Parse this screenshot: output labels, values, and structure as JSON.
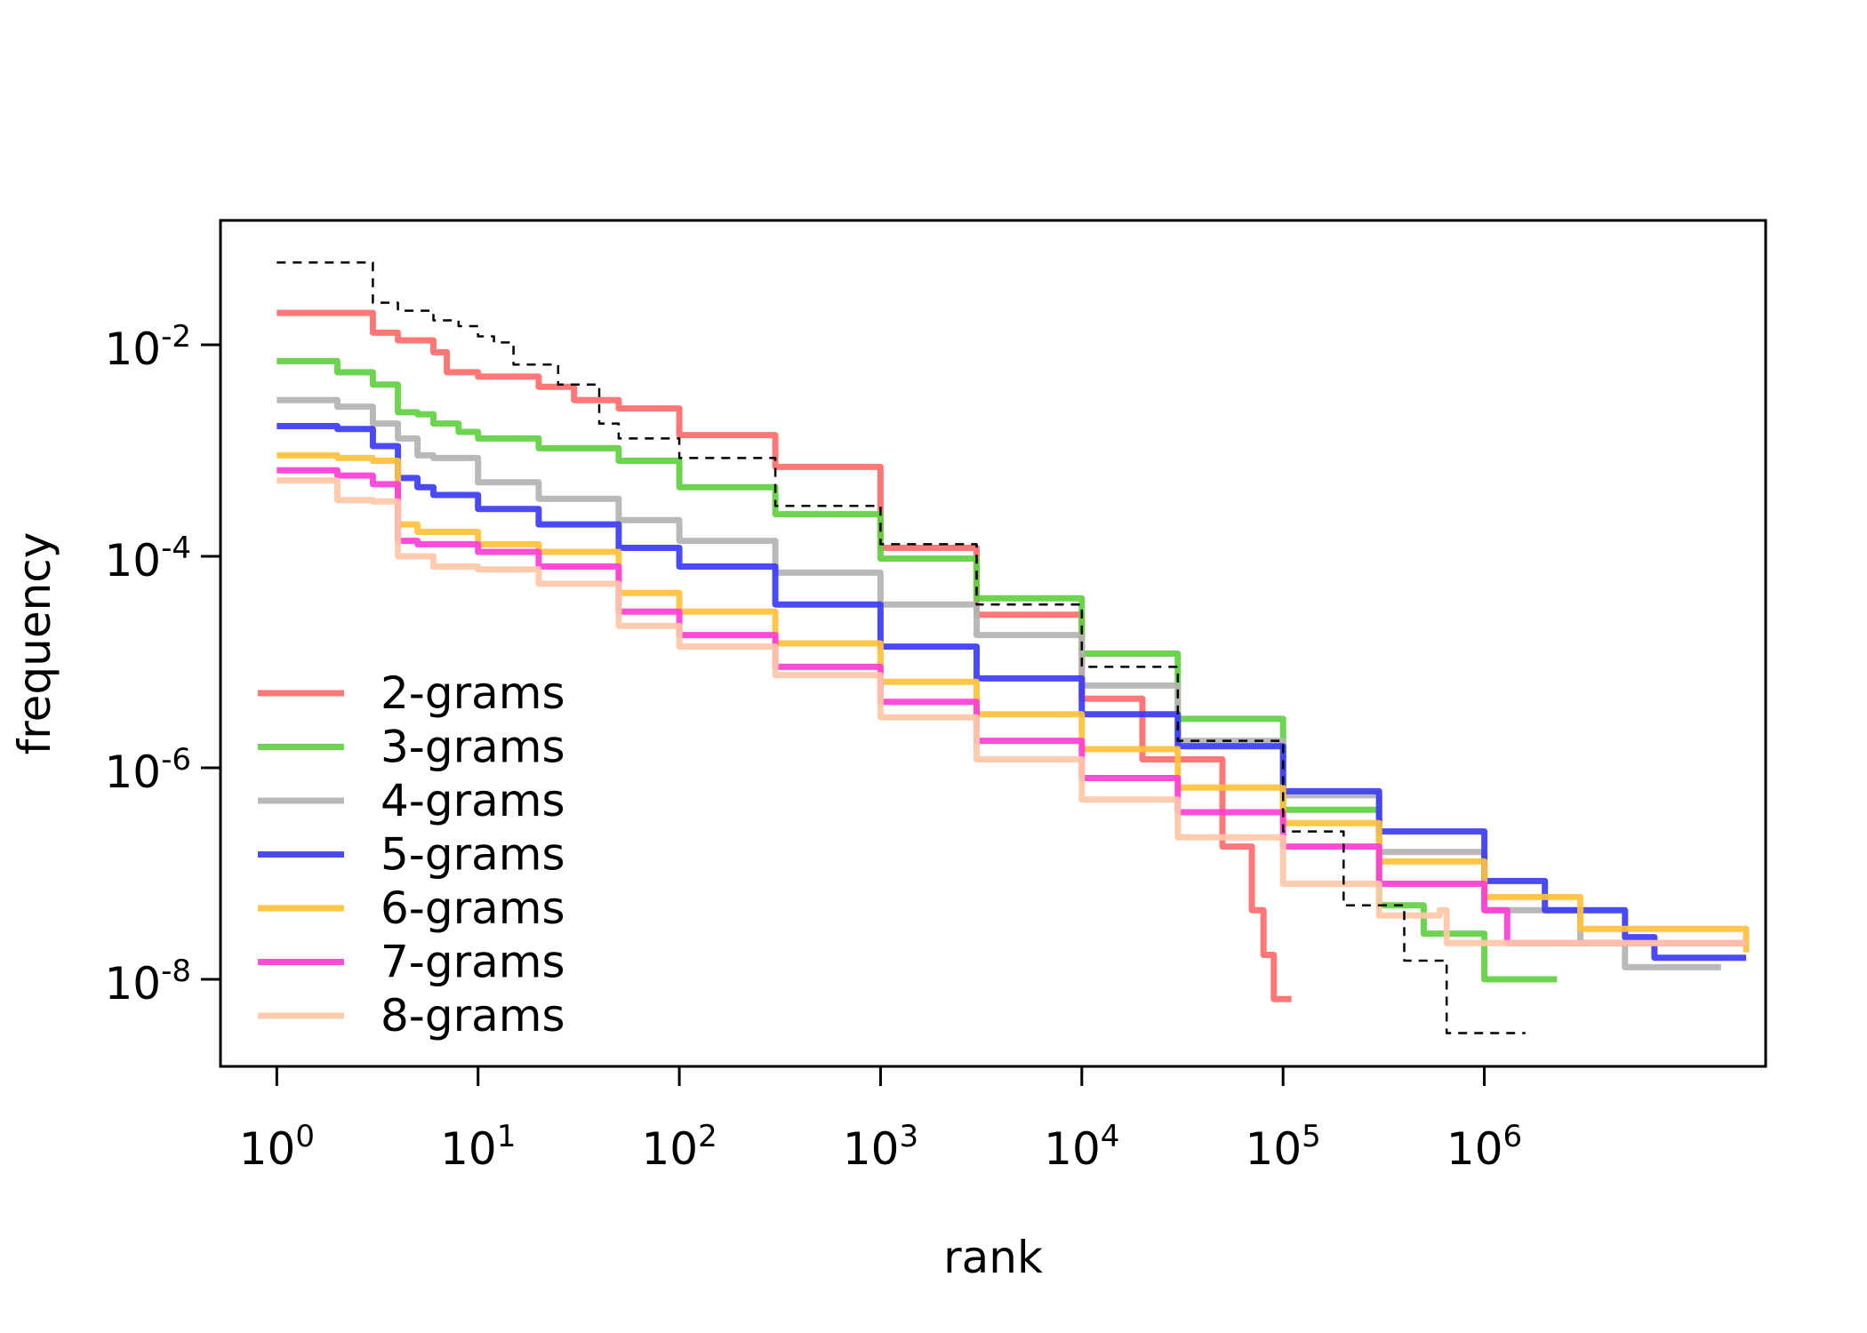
{
  "chart_data": {
    "type": "line",
    "title": "",
    "xlabel": "rank",
    "ylabel": "frequency",
    "x_scale": "log",
    "y_scale": "log",
    "xlim": [
      0.525,
      25000000
    ],
    "ylim": [
      1.5e-09,
      0.15
    ],
    "x_ticks": [
      {
        "base": "10",
        "exp": "0"
      },
      {
        "base": "10",
        "exp": "1"
      },
      {
        "base": "10",
        "exp": "2"
      },
      {
        "base": "10",
        "exp": "3"
      },
      {
        "base": "10",
        "exp": "4"
      },
      {
        "base": "10",
        "exp": "5"
      },
      {
        "base": "10",
        "exp": "6"
      }
    ],
    "y_ticks": [
      {
        "base": "10",
        "exp": "-2"
      },
      {
        "base": "10",
        "exp": "-4"
      },
      {
        "base": "10",
        "exp": "-6"
      },
      {
        "base": "10",
        "exp": "-8"
      }
    ],
    "grid": false,
    "legend_position": "bottom-left",
    "series": [
      {
        "name": "2-grams",
        "color": "#ff6b6b",
        "points": [
          [
            1,
            0.02
          ],
          [
            2,
            0.02
          ],
          [
            3,
            0.013
          ],
          [
            4,
            0.011
          ],
          [
            5,
            0.011
          ],
          [
            6,
            0.0085
          ],
          [
            7,
            0.0055
          ],
          [
            10,
            0.005
          ],
          [
            20,
            0.004
          ],
          [
            30,
            0.003
          ],
          [
            50,
            0.0025
          ],
          [
            100,
            0.0014
          ],
          [
            300,
            0.0007
          ],
          [
            1000,
            0.00012
          ],
          [
            3000,
            2.8e-05
          ],
          [
            10000,
            4.5e-06
          ],
          [
            20000,
            1.2e-06
          ],
          [
            50000,
            1.8e-07
          ],
          [
            70000,
            4.5e-08
          ],
          [
            80000,
            1.7e-08
          ],
          [
            90000,
            6.5e-09
          ],
          [
            110000,
            6.5e-09
          ]
        ]
      },
      {
        "name": "3-grams",
        "color": "#5fd03f",
        "points": [
          [
            1,
            0.007
          ],
          [
            2,
            0.0055
          ],
          [
            3,
            0.0042
          ],
          [
            4,
            0.0023
          ],
          [
            5,
            0.0022
          ],
          [
            6,
            0.0018
          ],
          [
            8,
            0.0015
          ],
          [
            10,
            0.0013
          ],
          [
            20,
            0.00105
          ],
          [
            50,
            0.0008
          ],
          [
            100,
            0.00045
          ],
          [
            300,
            0.00025
          ],
          [
            1000,
            9.5e-05
          ],
          [
            3000,
            4e-05
          ],
          [
            10000,
            1.2e-05
          ],
          [
            30000,
            2.9e-06
          ],
          [
            100000,
            4e-07
          ],
          [
            300000,
            5e-08
          ],
          [
            500000,
            2.7e-08
          ],
          [
            1000000,
            1e-08
          ],
          [
            1300000,
            1e-08
          ],
          [
            2300000,
            1e-08
          ]
        ]
      },
      {
        "name": "4-grams",
        "color": "#b3b3b3",
        "points": [
          [
            1,
            0.003
          ],
          [
            2,
            0.0026
          ],
          [
            3,
            0.0018
          ],
          [
            4,
            0.0013
          ],
          [
            5,
            0.0009
          ],
          [
            6,
            0.00085
          ],
          [
            10,
            0.0005
          ],
          [
            20,
            0.00035
          ],
          [
            50,
            0.00022
          ],
          [
            100,
            0.00014
          ],
          [
            300,
            7e-05
          ],
          [
            1000,
            3.5e-05
          ],
          [
            3000,
            1.8e-05
          ],
          [
            10000,
            6e-06
          ],
          [
            30000,
            1.8e-06
          ],
          [
            100000,
            5.5e-07
          ],
          [
            300000,
            1.6e-07
          ],
          [
            1000000,
            4.5e-08
          ],
          [
            3000000,
            2.2e-08
          ],
          [
            5000000,
            1.3e-08
          ],
          [
            15000000,
            1.3e-08
          ]
        ]
      },
      {
        "name": "5-grams",
        "color": "#3b3bf5",
        "points": [
          [
            1,
            0.0017
          ],
          [
            2,
            0.0016
          ],
          [
            3,
            0.0011
          ],
          [
            4,
            0.00055
          ],
          [
            5,
            0.00045
          ],
          [
            6,
            0.00038
          ],
          [
            10,
            0.00028
          ],
          [
            20,
            0.0002
          ],
          [
            50,
            0.00012
          ],
          [
            100,
            8e-05
          ],
          [
            300,
            3.5e-05
          ],
          [
            1000,
            1.4e-05
          ],
          [
            3000,
            7e-06
          ],
          [
            10000,
            3.2e-06
          ],
          [
            30000,
            1.6e-06
          ],
          [
            100000,
            6e-07
          ],
          [
            300000,
            2.5e-07
          ],
          [
            1000000,
            8.5e-08
          ],
          [
            2000000,
            4.5e-08
          ],
          [
            5000000,
            2.5e-08
          ],
          [
            7000000,
            1.6e-08
          ],
          [
            20000000,
            1.6e-08
          ]
        ]
      },
      {
        "name": "6-grams",
        "color": "#ffc13b",
        "points": [
          [
            1,
            0.0009
          ],
          [
            2,
            0.00085
          ],
          [
            3,
            0.0008
          ],
          [
            4,
            0.0002
          ],
          [
            5,
            0.00017
          ],
          [
            10,
            0.00013
          ],
          [
            20,
            0.00011
          ],
          [
            50,
            4.5e-05
          ],
          [
            100,
            3e-05
          ],
          [
            300,
            1.5e-05
          ],
          [
            1000,
            6.5e-06
          ],
          [
            3000,
            3.2e-06
          ],
          [
            10000,
            1.5e-06
          ],
          [
            30000,
            6.5e-07
          ],
          [
            100000,
            3e-07
          ],
          [
            300000,
            1.3e-07
          ],
          [
            1000000,
            6e-08
          ],
          [
            3000000,
            3e-08
          ],
          [
            20000000,
            1.8e-08
          ]
        ]
      },
      {
        "name": "7-grams",
        "color": "#ff3dd6",
        "points": [
          [
            1,
            0.00065
          ],
          [
            2,
            0.00058
          ],
          [
            3,
            0.00048
          ],
          [
            4,
            0.00014
          ],
          [
            5,
            0.00013
          ],
          [
            10,
            0.00011
          ],
          [
            20,
            8e-05
          ],
          [
            50,
            3e-05
          ],
          [
            100,
            1.8e-05
          ],
          [
            300,
            9e-06
          ],
          [
            1000,
            4.2e-06
          ],
          [
            3000,
            1.8e-06
          ],
          [
            10000,
            8e-07
          ],
          [
            30000,
            3.8e-07
          ],
          [
            100000,
            1.8e-07
          ],
          [
            300000,
            8e-08
          ],
          [
            1000000,
            4.5e-08
          ],
          [
            1300000,
            4.5e-08
          ],
          [
            1300000,
            2.2e-08
          ],
          [
            20000000,
            2.2e-08
          ]
        ]
      },
      {
        "name": "8-grams",
        "color": "#ffc8a8",
        "points": [
          [
            1,
            0.00052
          ],
          [
            2,
            0.00034
          ],
          [
            3,
            0.00033
          ],
          [
            4,
            0.0001
          ],
          [
            5,
            0.0001
          ],
          [
            6,
            8e-05
          ],
          [
            10,
            7.5e-05
          ],
          [
            20,
            5.5e-05
          ],
          [
            50,
            2.2e-05
          ],
          [
            100,
            1.4e-05
          ],
          [
            300,
            7.5e-06
          ],
          [
            1000,
            3e-06
          ],
          [
            3000,
            1.2e-06
          ],
          [
            10000,
            5e-07
          ],
          [
            30000,
            2.2e-07
          ],
          [
            100000,
            8e-08
          ],
          [
            300000,
            4e-08
          ],
          [
            600000,
            4.5e-08
          ],
          [
            650000,
            2.2e-08
          ],
          [
            20000000,
            2.2e-08
          ]
        ]
      },
      {
        "name": "",
        "color": "#000000",
        "dashed": true,
        "points": [
          [
            1,
            0.06
          ],
          [
            2,
            0.06
          ],
          [
            3,
            0.025
          ],
          [
            4,
            0.021
          ],
          [
            6,
            0.017
          ],
          [
            8,
            0.015
          ],
          [
            10,
            0.012
          ],
          [
            12,
            0.0105
          ],
          [
            15,
            0.0065
          ],
          [
            25,
            0.0042
          ],
          [
            40,
            0.0018
          ],
          [
            50,
            0.0013
          ],
          [
            100,
            0.00085
          ],
          [
            300,
            0.0003
          ],
          [
            1000,
            0.00013
          ],
          [
            3000,
            3.5e-05
          ],
          [
            10000,
            9e-06
          ],
          [
            30000,
            1.8e-06
          ],
          [
            100000,
            2.5e-07
          ],
          [
            200000,
            5e-08
          ],
          [
            400000,
            1.5e-08
          ],
          [
            600000,
            1.5e-08
          ],
          [
            650000,
            3.1e-09
          ],
          [
            1600000,
            3.1e-09
          ]
        ]
      }
    ]
  }
}
